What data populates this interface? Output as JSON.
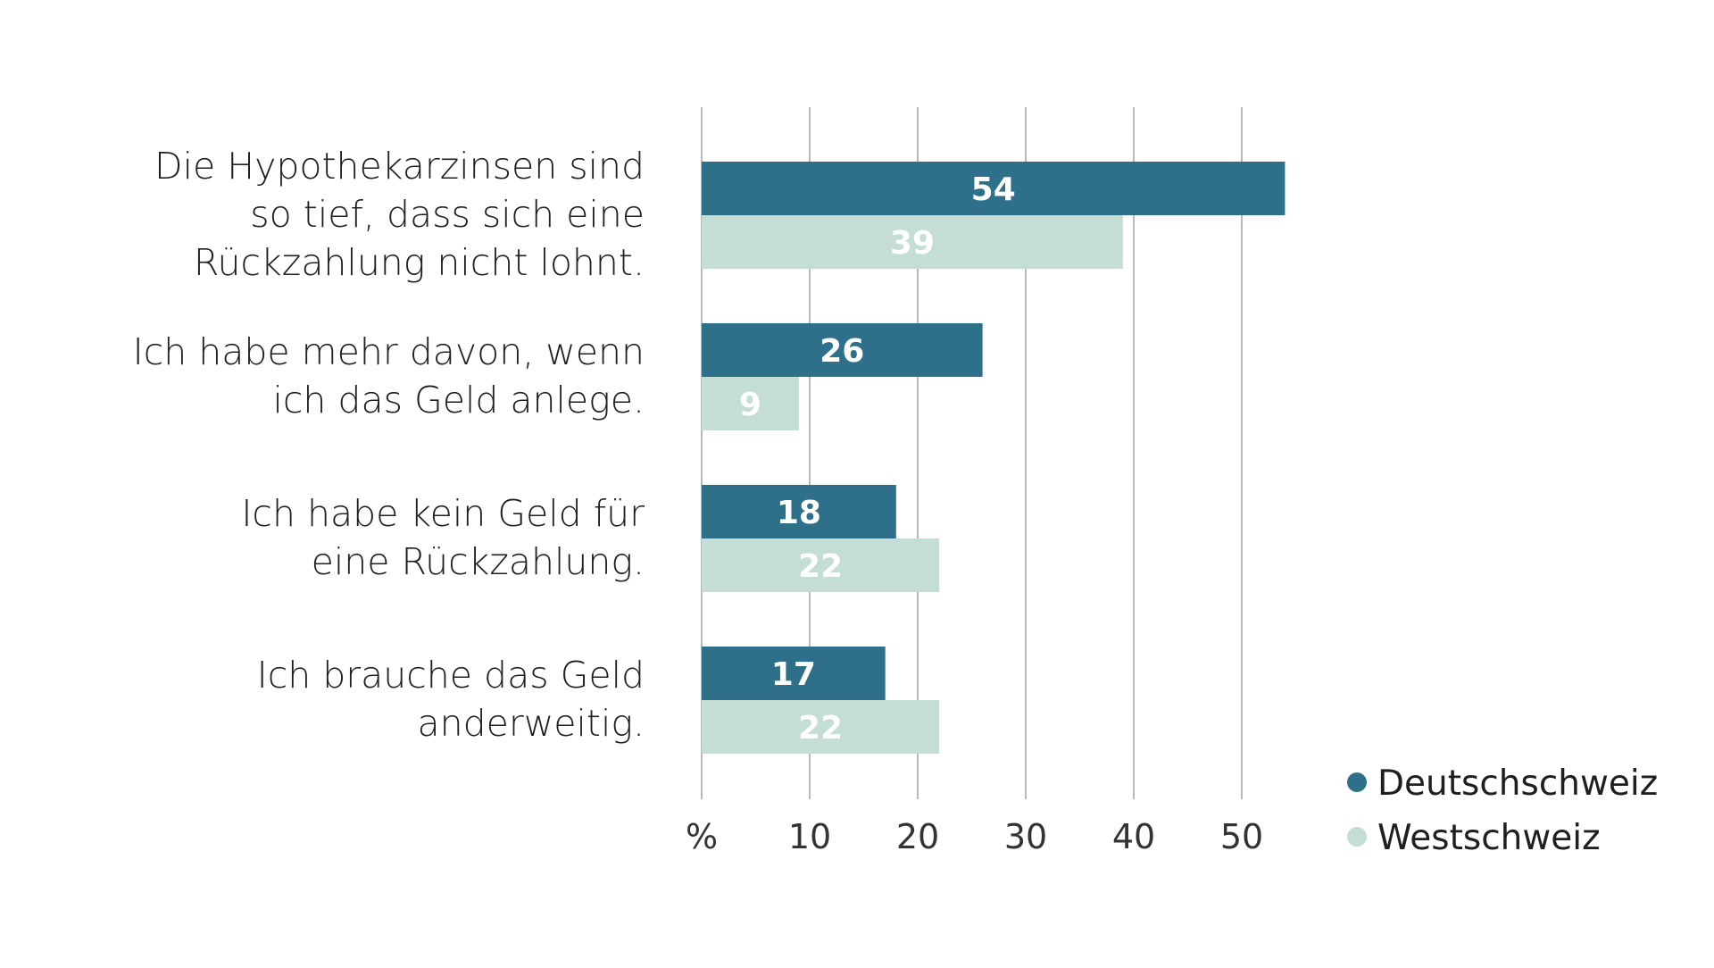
{
  "chart_data": {
    "type": "bar",
    "orientation": "horizontal",
    "categories": [
      [
        "Die Hypothekarzinsen sind",
        "so tief, dass sich eine",
        "Rückzahlung nicht lohnt."
      ],
      [
        "Ich habe mehr davon, wenn",
        "ich das Geld anlege."
      ],
      [
        "Ich habe kein Geld für",
        "eine Rückzahlung."
      ],
      [
        "Ich brauche das Geld",
        "anderweitig."
      ]
    ],
    "series": [
      {
        "name": "Deutschschweiz",
        "color": "#2e6f89",
        "values": [
          54,
          26,
          18,
          17
        ]
      },
      {
        "name": "Westschweiz",
        "color": "#c4ddd5",
        "values": [
          39,
          9,
          22,
          22
        ]
      }
    ],
    "xlim": [
      0,
      55
    ],
    "xticks": [
      0,
      10,
      20,
      30,
      40,
      50
    ],
    "xtick_labels": [
      "%",
      "10",
      "20",
      "30",
      "40",
      "50"
    ],
    "grid": true,
    "legend": "bottom-right",
    "data_labels": true
  }
}
